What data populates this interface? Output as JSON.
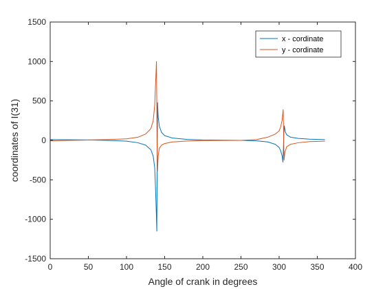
{
  "chart_data": {
    "type": "line",
    "xlabel": "Angle of crank in degrees",
    "ylabel": "coordinates of I(31)",
    "xlim": [
      0,
      400
    ],
    "ylim": [
      -1500,
      1500
    ],
    "xticks": [
      0,
      50,
      100,
      150,
      200,
      250,
      300,
      350,
      400
    ],
    "yticks": [
      -1500,
      -1000,
      -500,
      0,
      500,
      1000,
      1500
    ],
    "grid": false,
    "legend_position": "top-right",
    "series": [
      {
        "name": "x - cordinate",
        "color": "#0072BD",
        "points": [
          [
            0,
            10
          ],
          [
            25,
            8
          ],
          [
            50,
            5
          ],
          [
            75,
            0
          ],
          [
            100,
            -10
          ],
          [
            115,
            -30
          ],
          [
            125,
            -60
          ],
          [
            132,
            -120
          ],
          [
            135,
            -200
          ],
          [
            137,
            -350
          ],
          [
            138,
            -600
          ],
          [
            139,
            -900
          ],
          [
            139.7,
            -1150
          ],
          [
            140.2,
            -300
          ],
          [
            140.7,
            480
          ],
          [
            141.5,
            300
          ],
          [
            143,
            180
          ],
          [
            146,
            100
          ],
          [
            150,
            60
          ],
          [
            160,
            30
          ],
          [
            180,
            12
          ],
          [
            200,
            5
          ],
          [
            250,
            0
          ],
          [
            270,
            -5
          ],
          [
            285,
            -20
          ],
          [
            295,
            -50
          ],
          [
            300,
            -90
          ],
          [
            302,
            -130
          ],
          [
            304,
            -200
          ],
          [
            305,
            -275
          ],
          [
            305.6,
            -100
          ],
          [
            306.2,
            100
          ],
          [
            306.8,
            185
          ],
          [
            308,
            110
          ],
          [
            310,
            70
          ],
          [
            315,
            40
          ],
          [
            325,
            25
          ],
          [
            340,
            15
          ],
          [
            360,
            10
          ]
        ]
      },
      {
        "name": "y - cordinate",
        "color": "#D95319",
        "points": [
          [
            0,
            -5
          ],
          [
            25,
            0
          ],
          [
            50,
            5
          ],
          [
            75,
            10
          ],
          [
            100,
            20
          ],
          [
            115,
            40
          ],
          [
            125,
            80
          ],
          [
            132,
            150
          ],
          [
            135,
            250
          ],
          [
            137,
            450
          ],
          [
            138,
            700
          ],
          [
            139.3,
            1000
          ],
          [
            140,
            0
          ],
          [
            140.6,
            -390
          ],
          [
            141.5,
            -200
          ],
          [
            143,
            -100
          ],
          [
            146,
            -60
          ],
          [
            150,
            -40
          ],
          [
            160,
            -20
          ],
          [
            180,
            -8
          ],
          [
            200,
            -2
          ],
          [
            250,
            0
          ],
          [
            270,
            10
          ],
          [
            285,
            40
          ],
          [
            295,
            80
          ],
          [
            300,
            120
          ],
          [
            302,
            170
          ],
          [
            304,
            260
          ],
          [
            305.3,
            390
          ],
          [
            306,
            0
          ],
          [
            306.5,
            -250
          ],
          [
            307.5,
            -150
          ],
          [
            310,
            -80
          ],
          [
            315,
            -50
          ],
          [
            325,
            -30
          ],
          [
            340,
            -15
          ],
          [
            360,
            -10
          ]
        ]
      }
    ]
  }
}
